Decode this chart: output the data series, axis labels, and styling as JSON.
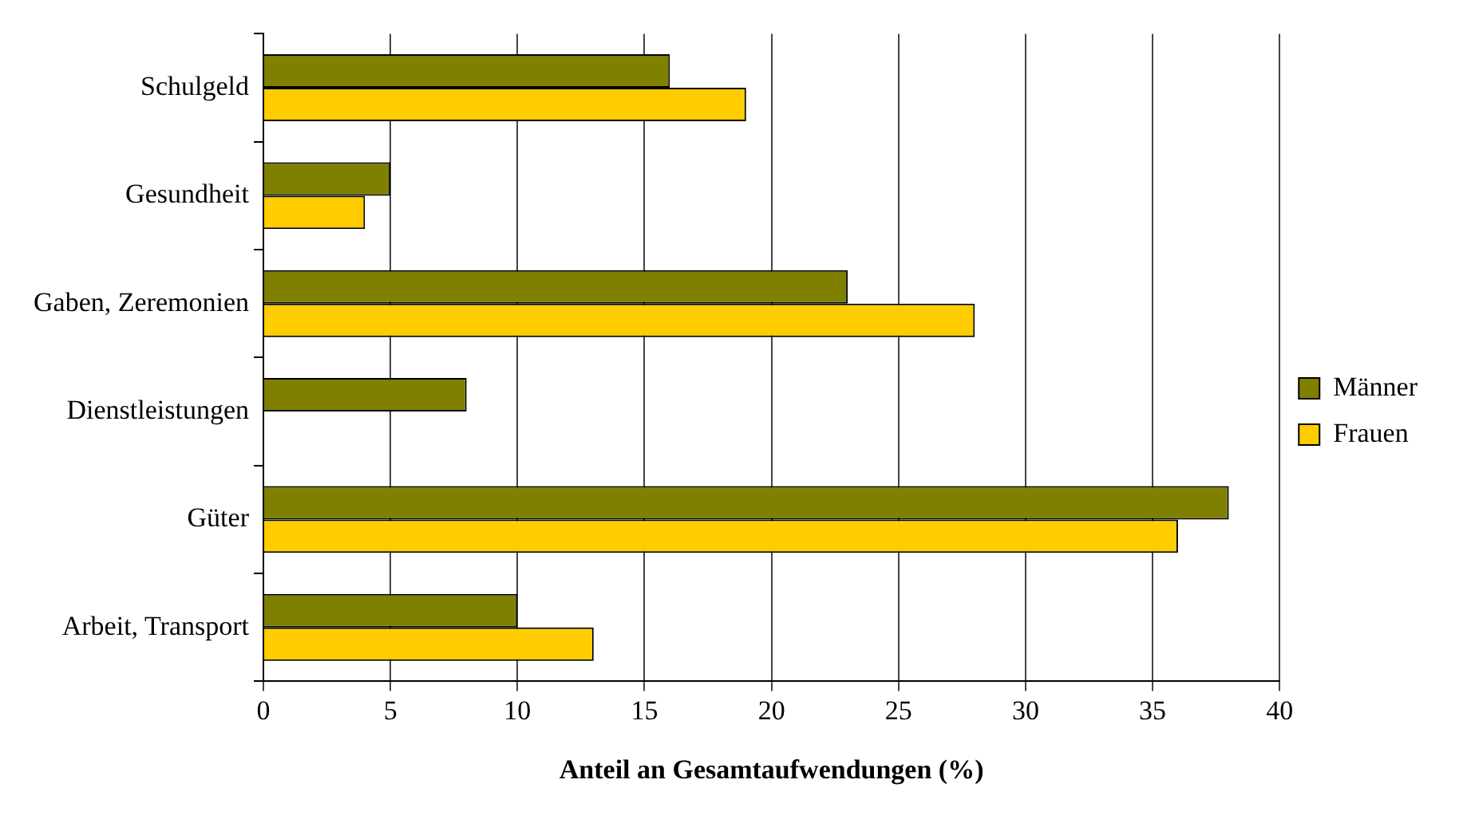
{
  "chart_data": {
    "type": "bar",
    "orientation": "horizontal",
    "xlabel": "Anteil an Gesamtaufwendungen (%)",
    "categories": [
      "Schulgeld",
      "Gesundheit",
      "Gaben, Zeremonien",
      "Dienstleistungen",
      "Güter",
      "Arbeit, Transport"
    ],
    "series": [
      {
        "name": "Männer",
        "color": "#808000",
        "values": [
          16,
          5,
          23,
          8,
          38,
          10
        ]
      },
      {
        "name": "Frauen",
        "color": "#ffcc00",
        "values": [
          19,
          4,
          28,
          null,
          36,
          13
        ]
      }
    ],
    "xlim": [
      0,
      40
    ],
    "xticks": [
      0,
      5,
      10,
      15,
      20,
      25,
      30,
      35,
      40
    ],
    "grid": "x",
    "legend": "right"
  }
}
